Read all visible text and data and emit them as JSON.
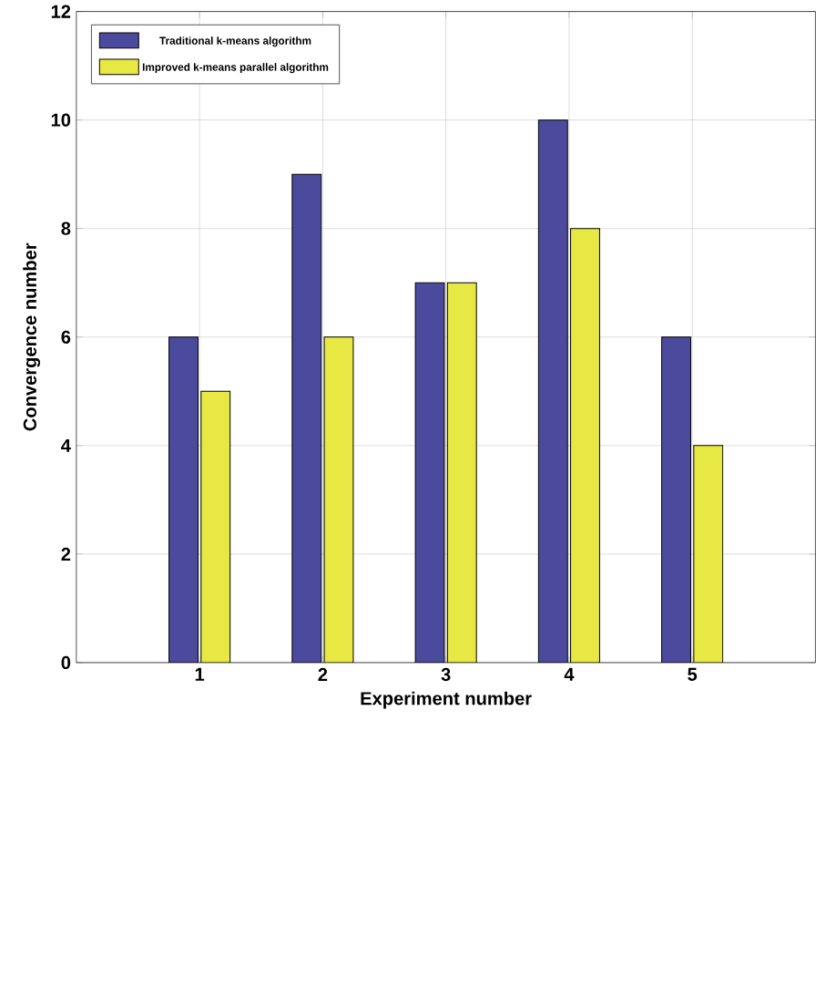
{
  "chart_data": {
    "type": "bar",
    "xlabel": "Experiment number",
    "ylabel": "Convergence number",
    "categories": [
      "1",
      "2",
      "3",
      "4",
      "5"
    ],
    "series": [
      {
        "name": "Traditional k-means algorithm",
        "color": "#4b4a9c",
        "values": [
          6,
          9,
          7,
          10,
          6
        ]
      },
      {
        "name": "Improved k-means parallel algorithm",
        "color": "#e8e845",
        "values": [
          5,
          6,
          7,
          8,
          4
        ]
      }
    ],
    "ylim": [
      0,
      12
    ],
    "yticks": [
      0,
      2,
      4,
      6,
      8,
      10,
      12
    ],
    "grid": true,
    "legend": "top left"
  }
}
